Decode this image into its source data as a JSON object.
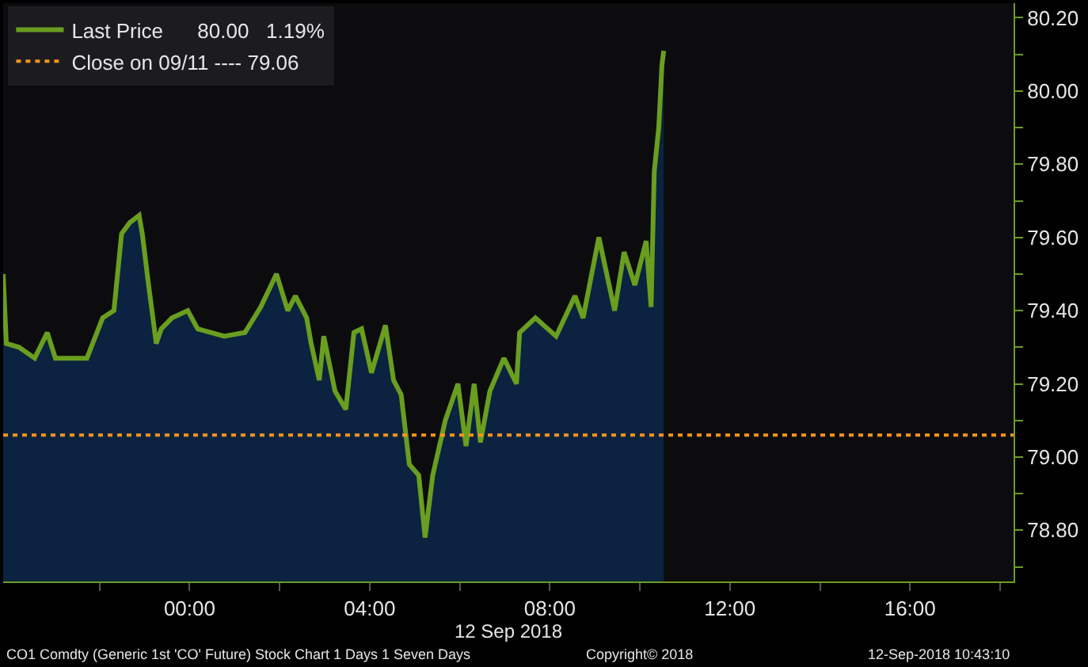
{
  "chart_data": {
    "type": "area",
    "xlabel": "12 Sep 2018",
    "x": [
      -4.14,
      -4.07,
      -3.79,
      -3.44,
      -3.16,
      -2.98,
      -2.28,
      -1.93,
      -1.68,
      -1.51,
      -1.33,
      -1.12,
      -1.05,
      -0.91,
      -0.74,
      -0.63,
      -0.39,
      -0.04,
      0.18,
      0.77,
      1.23,
      1.58,
      1.93,
      2.18,
      2.35,
      2.6,
      2.7,
      2.88,
      2.98,
      3.23,
      3.47,
      3.65,
      3.82,
      4.04,
      4.35,
      4.53,
      4.7,
      4.88,
      5.09,
      5.23,
      5.4,
      5.68,
      5.96,
      6.14,
      6.32,
      6.46,
      6.67,
      6.98,
      7.26,
      7.33,
      7.68,
      8.14,
      8.56,
      8.74,
      9.09,
      9.44,
      9.65,
      9.89,
      10.14,
      10.25,
      10.32,
      10.42,
      10.49,
      10.53
    ],
    "series": [
      {
        "color": "#0b2340",
        "values": [
          79.5,
          79.31,
          79.3,
          79.27,
          79.34,
          79.27,
          79.27,
          79.38,
          79.4,
          79.61,
          79.64,
          79.66,
          79.61,
          79.47,
          79.31,
          79.35,
          79.38,
          79.4,
          79.35,
          79.33,
          79.34,
          79.41,
          79.5,
          79.4,
          79.44,
          79.38,
          79.31,
          79.21,
          79.33,
          79.18,
          79.13,
          79.34,
          79.35,
          79.23,
          79.36,
          79.21,
          79.17,
          78.98,
          78.95,
          78.78,
          78.95,
          79.1,
          79.2,
          79.03,
          79.2,
          79.04,
          79.18,
          79.27,
          79.2,
          79.34,
          79.38,
          79.33,
          79.44,
          79.38,
          79.6,
          79.4,
          79.56,
          79.47,
          79.59,
          79.41,
          79.78,
          79.9,
          80.07,
          80.11
        ]
      },
      {
        "type": "line",
        "name": "Last Price      80.00   1.19%",
        "color": "#6a9e1f",
        "values": [
          79.5,
          79.31,
          79.3,
          79.27,
          79.34,
          79.27,
          79.27,
          79.38,
          79.4,
          79.61,
          79.64,
          79.66,
          79.61,
          79.47,
          79.31,
          79.35,
          79.38,
          79.4,
          79.35,
          79.33,
          79.34,
          79.41,
          79.5,
          79.4,
          79.44,
          79.38,
          79.31,
          79.21,
          79.33,
          79.18,
          79.13,
          79.34,
          79.35,
          79.23,
          79.36,
          79.21,
          79.17,
          78.98,
          78.95,
          78.78,
          78.95,
          79.1,
          79.2,
          79.03,
          79.2,
          79.04,
          79.18,
          79.27,
          79.2,
          79.34,
          79.38,
          79.33,
          79.44,
          79.38,
          79.6,
          79.4,
          79.56,
          79.47,
          79.59,
          79.41,
          79.78,
          79.9,
          80.07,
          80.11
        ]
      }
    ],
    "ref_lines": [
      {
        "axis": "y",
        "value": 79.06,
        "label": "Close on 09/11 ---- 79.06",
        "color": "#f7941d",
        "line_style": "dotted"
      }
    ],
    "annotations": [
      "CO1 Comdty (Generic 1st 'CO' Future) Stock Chart 1 Days 1 Seven Days",
      "Copyright© 2018",
      "12-Sep-2018 10:43:10"
    ],
    "xlim": [
      -4.14,
      18.3
    ],
    "xticks": [
      {
        "value": -2,
        "label": null
      },
      {
        "value": 0,
        "label": "00:00"
      },
      {
        "value": 2,
        "label": null
      },
      {
        "value": 4,
        "label": "04:00"
      },
      {
        "value": 6,
        "label": null
      },
      {
        "value": 8,
        "label": "08:00"
      },
      {
        "value": 10,
        "label": null
      },
      {
        "value": 12,
        "label": "12:00"
      },
      {
        "value": 14,
        "label": null
      },
      {
        "value": 16,
        "label": "16:00"
      },
      {
        "value": 18,
        "label": null
      }
    ],
    "ylim": [
      78.66,
      80.24
    ],
    "yticks": [
      {
        "value": 78.7,
        "label": null
      },
      {
        "value": 78.8,
        "label": "78.80"
      },
      {
        "value": 78.9,
        "label": null
      },
      {
        "value": 79.0,
        "label": "79.00"
      },
      {
        "value": 79.1,
        "label": null
      },
      {
        "value": 79.2,
        "label": "79.20"
      },
      {
        "value": 79.3,
        "label": null
      },
      {
        "value": 79.4,
        "label": "79.40"
      },
      {
        "value": 79.5,
        "label": null
      },
      {
        "value": 79.6,
        "label": "79.60"
      },
      {
        "value": 79.7,
        "label": null
      },
      {
        "value": 79.8,
        "label": "79.80"
      },
      {
        "value": 79.9,
        "label": null
      },
      {
        "value": 80.0,
        "label": "80.00"
      },
      {
        "value": 80.1,
        "label": null
      },
      {
        "value": 80.2,
        "label": "80.20"
      }
    ],
    "grid": false,
    "legend": "top left",
    "line_style": "solid",
    "marker": "none"
  }
}
